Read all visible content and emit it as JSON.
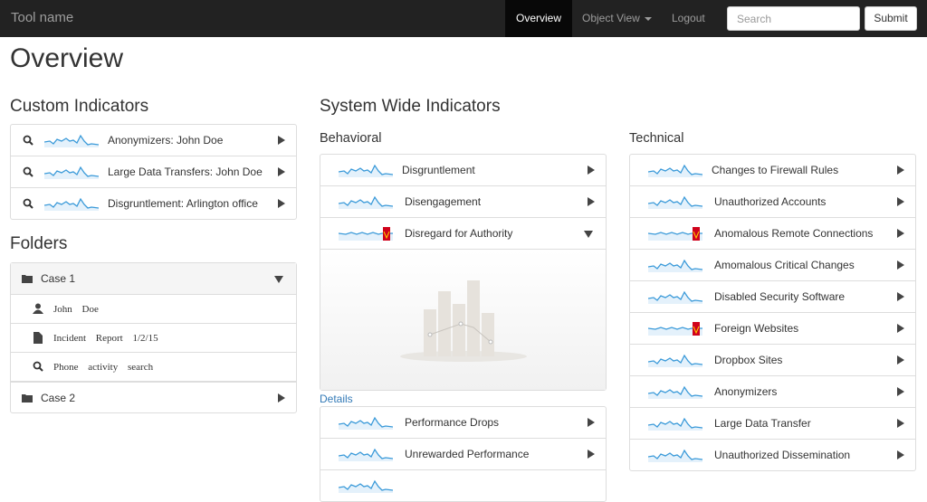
{
  "navbar": {
    "brand": "Tool name",
    "links": [
      "Overview",
      "Object View",
      "Logout"
    ],
    "search_placeholder": "Search",
    "submit": "Submit"
  },
  "page_title": "Overview",
  "custom_indicators": {
    "title": "Custom Indicators",
    "items": [
      "Anonymizers: John Doe",
      "Large Data Transfers: John Doe",
      "Disgruntlement: Arlington office"
    ]
  },
  "folders": {
    "title": "Folders",
    "items": [
      {
        "label": "Case 1",
        "children": [
          "John Doe",
          "Incident Report 1/2/15",
          "Phone activity search"
        ]
      },
      {
        "label": "Case 2"
      }
    ]
  },
  "system_wide": {
    "title": "System Wide Indicators",
    "behavioral": {
      "title": "Behavioral",
      "items": [
        "Disgruntlement",
        "Disengagement",
        "Disregard for Authority",
        "Performance Drops",
        "Unrewarded Performance"
      ],
      "details": "Details"
    },
    "technical": {
      "title": "Technical",
      "items": [
        "Changes to Firewall Rules",
        "Unauthorized Accounts",
        "Anomalous Remote Connections",
        "Amomalous Critical Changes",
        "Disabled Security Software",
        "Foreign Websites",
        "Dropbox Sites",
        "Anonymizers",
        "Large Data Transfer",
        "Unauthorized Dissemination"
      ]
    }
  }
}
